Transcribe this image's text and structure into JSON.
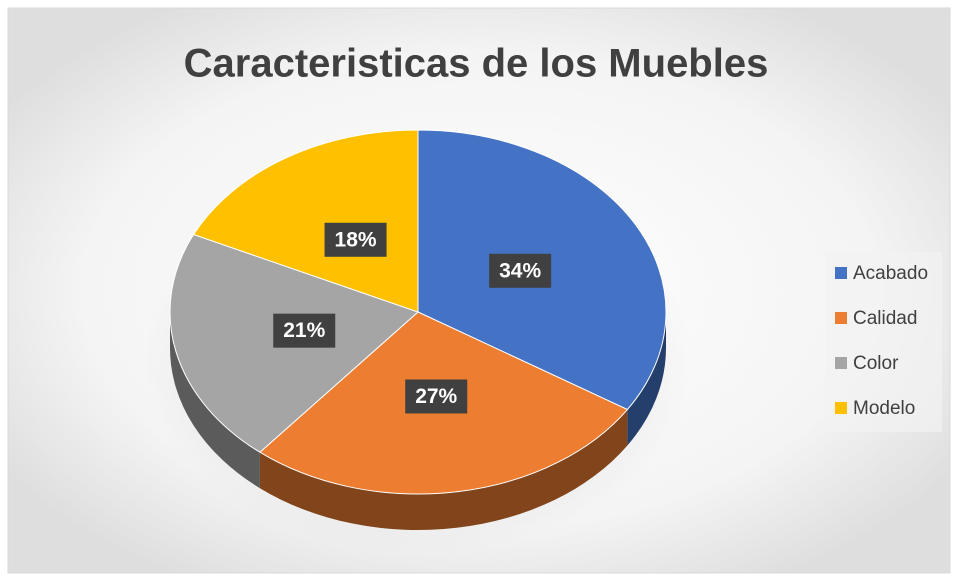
{
  "chart_data": {
    "type": "pie",
    "title": "Caracteristicas de los Muebles",
    "categories": [
      "Acabado",
      "Calidad",
      "Color",
      "Modelo"
    ],
    "values": [
      34,
      27,
      21,
      18
    ],
    "value_labels": [
      "34%",
      "27%",
      "21%",
      "18%"
    ],
    "colors": [
      "#4472c4",
      "#ed7d31",
      "#a5a5a5",
      "#ffc000"
    ],
    "legend": "right"
  }
}
